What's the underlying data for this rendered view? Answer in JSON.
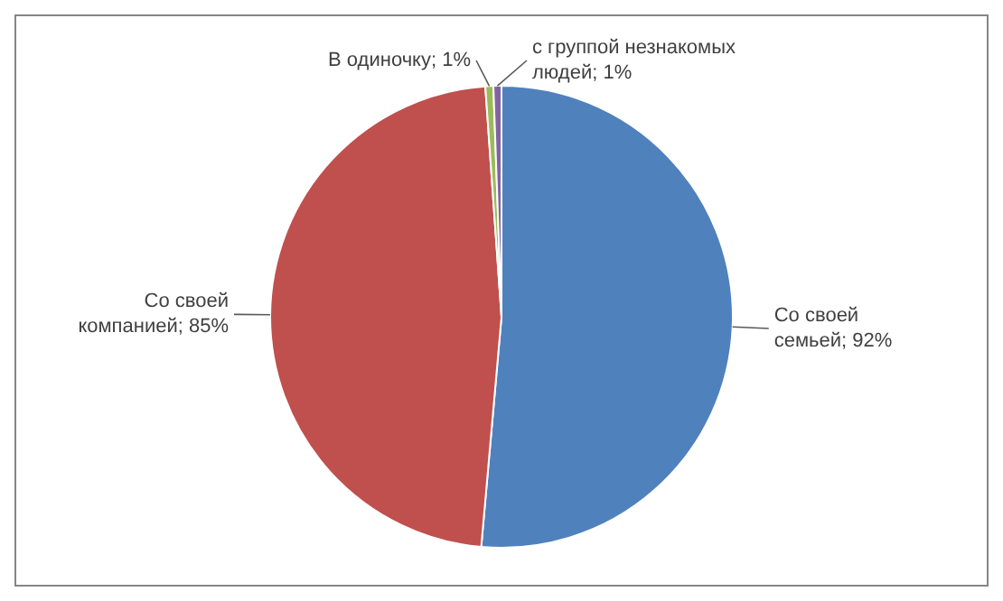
{
  "chart_data": {
    "type": "pie",
    "categories": [
      "Со своей семьей",
      "Со своей компанией",
      "В одиночку",
      "с группой незнакомых людей"
    ],
    "values": [
      92,
      85,
      1,
      1
    ],
    "value_labels": [
      "92%",
      "85%",
      "1%",
      "1%"
    ],
    "colors": [
      "#4f81bd",
      "#c0504d",
      "#9bbb59",
      "#8064a2"
    ],
    "legend": false
  }
}
